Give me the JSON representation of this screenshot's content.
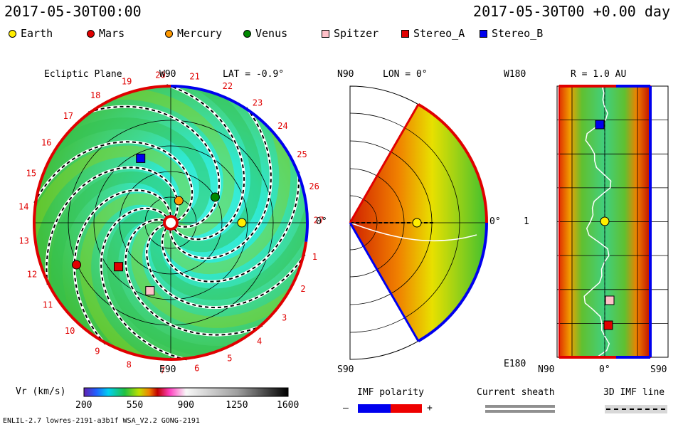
{
  "header": {
    "left_title": "2017-05-30T00:00",
    "right_title": "2017-05-30T00 +0.00 day"
  },
  "legend": [
    {
      "name": "Earth",
      "color": "#ffee00",
      "shape": "circle"
    },
    {
      "name": "Mars",
      "color": "#e00000",
      "shape": "circle"
    },
    {
      "name": "Mercury",
      "color": "#ff9900",
      "shape": "circle"
    },
    {
      "name": "Venus",
      "color": "#008800",
      "shape": "circle"
    },
    {
      "name": "Spitzer",
      "color": "#ffc0c8",
      "shape": "square"
    },
    {
      "name": "Stereo_A",
      "color": "#e00000",
      "shape": "square"
    },
    {
      "name": "Stereo_B",
      "color": "#0000ee",
      "shape": "square"
    }
  ],
  "panels": {
    "ecliptic": {
      "title": "Ecliptic Plane",
      "top_label": "W90",
      "bottom_label": "E90",
      "lat_label": "LAT = -0.9°",
      "right_label": "0°",
      "sector_numbers": [
        "1",
        "2",
        "3",
        "4",
        "5",
        "6",
        "7",
        "8",
        "9",
        "10",
        "11",
        "12",
        "13",
        "14",
        "15",
        "16",
        "17",
        "18",
        "19",
        "20",
        "21",
        "22",
        "23",
        "24",
        "25",
        "26",
        "27"
      ]
    },
    "meridional": {
      "top_label": "N90",
      "bottom_label": "S90",
      "lon_label": "LON = 0°",
      "right_label": "0°"
    },
    "longitude": {
      "top_left_label": "W180",
      "bottom_left_label": "E180",
      "radius_label": "R = 1.0 AU",
      "y_center_label": "1",
      "x_labels": [
        "N90",
        "0°",
        "S90"
      ]
    }
  },
  "chart_data": {
    "type": "heatmap",
    "quantity": "Vr (km/s)",
    "colorbar_ticks": [
      200,
      550,
      900,
      1250,
      1600
    ],
    "colorbar_range": [
      200,
      1600
    ],
    "bodies_ecliptic": [
      {
        "name": "Earth",
        "longitude_deg": 0,
        "radius_au": 1.0
      },
      {
        "name": "Venus",
        "longitude_deg": 30,
        "radius_au": 0.72
      },
      {
        "name": "Mercury",
        "longitude_deg": 70,
        "radius_au": 0.33
      },
      {
        "name": "Stereo_B",
        "longitude_deg": 115,
        "radius_au": 1.0
      },
      {
        "name": "Stereo_A",
        "longitude_deg": -140,
        "radius_au": 0.96
      },
      {
        "name": "Spitzer",
        "longitude_deg": -107,
        "radius_au": 1.0
      },
      {
        "name": "Mars",
        "longitude_deg": -156,
        "radius_au": 1.45
      }
    ]
  },
  "footer": {
    "colorbar_label": "Vr (km/s)",
    "colorbar_ticks": [
      "200",
      "550",
      "900",
      "1250",
      "1600"
    ],
    "imf_polarity_label": "IMF polarity",
    "imf_minus": "–",
    "imf_plus": "+",
    "current_sheath_label": "Current sheath",
    "imf_line_label": "3D IMF line",
    "model_info": "ENLIL-2.7 lowres-2191-a3b1f WSA_V2.2 GONG-2191"
  }
}
